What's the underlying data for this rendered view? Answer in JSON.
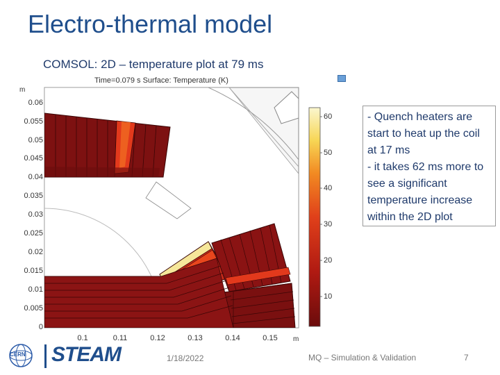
{
  "slide": {
    "title": "Electro-thermal model",
    "subtitle": "COMSOL: 2D – temperature plot at 79 ms",
    "note_lines": [
      "- Quench heaters are start to heat up the coil at 17 ms",
      " - it takes 62 ms more to see a significant temperature increase within the 2D plot"
    ],
    "footer": {
      "date": "1/18/2022",
      "center": "MQ – Simulation & Validation",
      "page": "7"
    },
    "logos": {
      "cern": "CERN",
      "steam": "STEAM"
    }
  },
  "plot": {
    "header": "Time=0.079 s   Surface: Temperature (K)",
    "y_unit": "m",
    "x_unit": "m",
    "y_ticks": [
      "0.06",
      "0.055",
      "0.05",
      "0.045",
      "0.04",
      "0.035",
      "0.03",
      "0.025",
      "0.02",
      "0.015",
      "0.01",
      "0.005",
      "0"
    ],
    "x_ticks": [
      "0.1",
      "0.11",
      "0.12",
      "0.13",
      "0.14",
      "0.15"
    ],
    "colorbar_ticks": [
      "60",
      "50",
      "40",
      "30",
      "20",
      "10"
    ],
    "colors": {
      "cold": "#7a1010",
      "mid": "#c8281a",
      "hot": "#e5431d",
      "warm": "#f07a20",
      "max": "#f7ea9a",
      "iron": "#ffffff"
    }
  }
}
